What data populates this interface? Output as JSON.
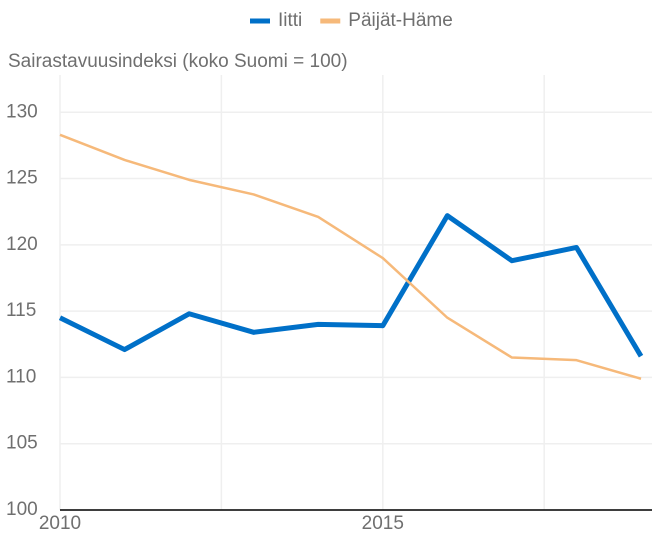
{
  "chart_data": {
    "type": "line",
    "y_axis_label": "Sairastavuusindeksi (koko Suomi = 100)",
    "x": [
      2010,
      2011,
      2012,
      2013,
      2014,
      2015,
      2016,
      2017,
      2018,
      2019
    ],
    "series": [
      {
        "name": "Iitti",
        "color": "#0070c8",
        "values": [
          114.5,
          112.1,
          114.8,
          113.4,
          114.0,
          113.9,
          122.2,
          118.8,
          119.8,
          111.6
        ]
      },
      {
        "name": "Päijät-Häme",
        "color": "#f6b97a",
        "values": [
          128.3,
          126.4,
          124.9,
          123.8,
          122.1,
          119.0,
          114.5,
          111.5,
          111.3,
          109.9
        ]
      }
    ],
    "xlim": [
      2010,
      2019.17
    ],
    "xticks": [
      2010,
      2015
    ],
    "x_minor_grid": [
      2012.5,
      2017.5
    ],
    "ylim": [
      100,
      131.3
    ],
    "yticks": [
      100,
      105,
      110,
      115,
      120,
      125,
      130
    ],
    "grid": true,
    "legend": "top"
  }
}
